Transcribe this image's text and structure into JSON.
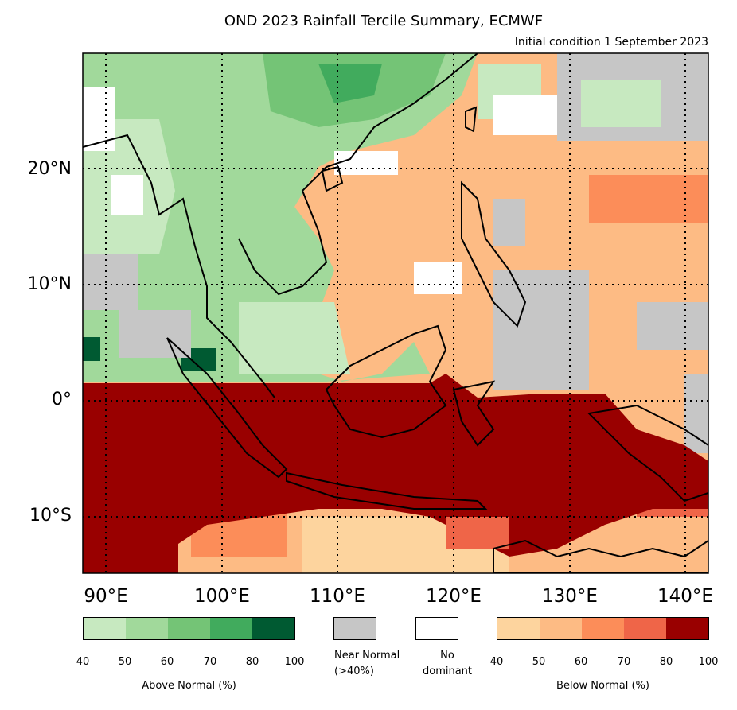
{
  "title": "OND 2023 Rainfall Tercile Summary, ECMWF",
  "subtitle": "Initial condition 1 September 2023",
  "map": {
    "lon_range": [
      86,
      140
    ],
    "lat_range": [
      -15,
      30
    ],
    "lat_labels": [
      "20°N",
      "10°N",
      "0°",
      "10°S"
    ],
    "lon_labels": [
      "90°E",
      "100°E",
      "110°E",
      "120°E",
      "130°E",
      "140°E"
    ],
    "gridlines": "dotted",
    "regions": [
      {
        "name": "above-normal-mainland",
        "category": "above"
      },
      {
        "name": "below-normal-maritime",
        "category": "below"
      },
      {
        "name": "near-normal-patches",
        "category": "near"
      },
      {
        "name": "no-dominant-patches",
        "category": "none"
      }
    ]
  },
  "legend": {
    "above": {
      "label": "Above Normal (%)",
      "ticks": [
        "40",
        "50",
        "60",
        "70",
        "80",
        "100"
      ],
      "colors": [
        "#c7e9c0",
        "#a1d99b",
        "#74c476",
        "#41ab5d",
        "#005a32"
      ]
    },
    "near": {
      "label1": "Near Normal",
      "label2": "(>40%)",
      "color": "#c6c6c6"
    },
    "none": {
      "label1": "No",
      "label2": "dominant",
      "color": "#ffffff"
    },
    "below": {
      "label": "Below Normal (%)",
      "ticks": [
        "40",
        "50",
        "60",
        "70",
        "80",
        "100"
      ],
      "colors": [
        "#fdd49e",
        "#fdbb84",
        "#fc8d59",
        "#ef6548",
        "#990000"
      ]
    }
  }
}
